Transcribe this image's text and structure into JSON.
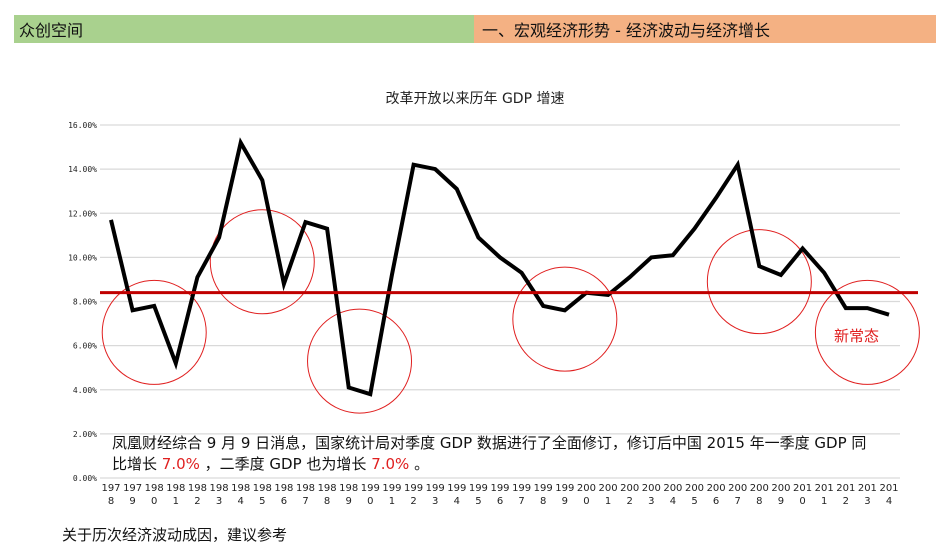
{
  "header": {
    "left_title": "众创空间",
    "right_title": "一、宏观经济形势 - 经济波动与经济增长",
    "left_color": "#a9d18e",
    "right_color": "#f4b183"
  },
  "chart_data": {
    "type": "line",
    "title": "改革开放以来历年 GDP 增速",
    "xlabel": "",
    "ylabel": "",
    "ylim": [
      0,
      16
    ],
    "y_ticks": [
      "0.00%",
      "2.00%",
      "4.00%",
      "6.00%",
      "8.00%",
      "10.00%",
      "12.00%",
      "14.00%",
      "16.00%"
    ],
    "grid": true,
    "legend": "none",
    "categories": [
      "1978",
      "1979",
      "1980",
      "1981",
      "1982",
      "1983",
      "1984",
      "1985",
      "1986",
      "1987",
      "1988",
      "1989",
      "1990",
      "1991",
      "1992",
      "1993",
      "1994",
      "1995",
      "1996",
      "1997",
      "1998",
      "1999",
      "2000",
      "2001",
      "2002",
      "2003",
      "2004",
      "2005",
      "2006",
      "2007",
      "2008",
      "2009",
      "2010",
      "2011",
      "2012",
      "2013",
      "2014"
    ],
    "series": [
      {
        "name": "GDP增速",
        "color": "#000000",
        "values": [
          11.7,
          7.6,
          7.8,
          5.2,
          9.1,
          10.9,
          15.2,
          13.5,
          8.8,
          11.6,
          11.3,
          4.1,
          3.8,
          9.2,
          14.2,
          14.0,
          13.1,
          10.9,
          10.0,
          9.3,
          7.8,
          7.6,
          8.4,
          8.3,
          9.1,
          10.0,
          10.1,
          11.3,
          12.7,
          14.2,
          9.6,
          9.2,
          10.4,
          9.3,
          7.7,
          7.7,
          7.4
        ]
      }
    ],
    "reference_line": {
      "value": 8.4,
      "color": "#c00000"
    },
    "annotations": [
      {
        "type": "circle",
        "center_year": "1980",
        "center_value": 6.6
      },
      {
        "type": "circle",
        "center_year": "1985",
        "center_value": 9.8
      },
      {
        "type": "circle",
        "center_year": "1989.5",
        "center_value": 5.3
      },
      {
        "type": "circle",
        "center_year": "1999",
        "center_value": 7.2
      },
      {
        "type": "circle",
        "center_year": "2008",
        "center_value": 8.9
      },
      {
        "type": "circle",
        "center_year": "2013",
        "center_value": 6.6,
        "label": "新常态"
      }
    ]
  },
  "annotation_label": "新常态",
  "note": {
    "line1": "凤凰财经综合  9 月 9 日消息，国家统计局对季度 GDP 数据进行了全面修订，修订后中国 2015 年一季度 GDP 同",
    "line2_a": "比增长 ",
    "line2_q1": "7.0%",
    "line2_b": " ，二季度 GDP 也为增长 ",
    "line2_q2": "7.0%",
    "line2_c": " 。"
  },
  "footer_text": "关于历次经济波动成因，建议参考"
}
